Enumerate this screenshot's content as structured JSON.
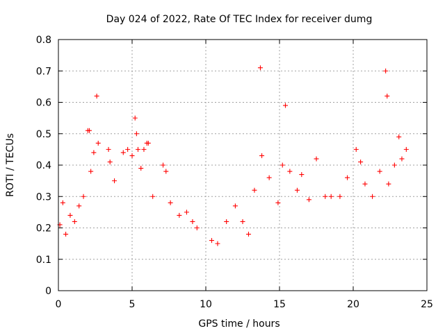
{
  "chart_data": {
    "type": "scatter",
    "title": "Day 024 of 2022, Rate Of TEC Index for receiver dumg",
    "xlabel": "GPS time / hours",
    "ylabel": "ROTI / TECUs",
    "xlim": [
      0,
      25
    ],
    "ylim": [
      0,
      0.8
    ],
    "x_ticks": [
      "0",
      "5",
      "10",
      "15",
      "20",
      "25"
    ],
    "y_ticks": [
      "0",
      "0.1",
      "0.2",
      "0.3",
      "0.4",
      "0.5",
      "0.6",
      "0.7",
      "0.8"
    ],
    "grid": true,
    "marker": "plus",
    "color": "#ff0000",
    "series": [
      {
        "x": [
          0.1,
          0.3,
          0.5,
          0.8,
          1.1,
          1.4,
          1.7,
          2.0,
          2.1,
          2.2,
          2.4,
          2.6,
          2.7,
          3.4,
          3.5,
          3.8,
          4.4,
          4.7,
          5.0,
          5.2,
          5.3,
          5.4,
          5.6,
          5.8,
          6.0,
          6.1,
          6.4,
          7.1,
          7.3,
          7.6,
          8.2,
          8.7,
          9.1,
          9.4,
          10.4,
          10.8,
          11.4,
          12.0,
          12.5,
          12.9,
          13.3,
          13.7,
          13.8,
          14.3,
          14.9,
          15.2,
          15.4,
          15.7,
          16.2,
          16.5,
          17.0,
          17.5,
          18.1,
          18.5,
          19.1,
          19.6,
          20.2,
          20.5,
          20.8,
          21.3,
          21.8,
          22.2,
          22.3,
          22.4,
          22.8,
          23.1,
          23.3,
          23.6
        ],
        "y": [
          0.21,
          0.28,
          0.18,
          0.24,
          0.22,
          0.27,
          0.3,
          0.51,
          0.51,
          0.38,
          0.44,
          0.62,
          0.47,
          0.45,
          0.41,
          0.35,
          0.44,
          0.45,
          0.43,
          0.55,
          0.5,
          0.45,
          0.39,
          0.45,
          0.47,
          0.47,
          0.3,
          0.4,
          0.38,
          0.28,
          0.24,
          0.25,
          0.22,
          0.2,
          0.16,
          0.15,
          0.22,
          0.27,
          0.22,
          0.18,
          0.32,
          0.71,
          0.43,
          0.36,
          0.28,
          0.4,
          0.59,
          0.38,
          0.32,
          0.37,
          0.29,
          0.42,
          0.3,
          0.3,
          0.3,
          0.36,
          0.45,
          0.41,
          0.34,
          0.3,
          0.38,
          0.7,
          0.62,
          0.34,
          0.4,
          0.49,
          0.42,
          0.45
        ]
      }
    ]
  }
}
